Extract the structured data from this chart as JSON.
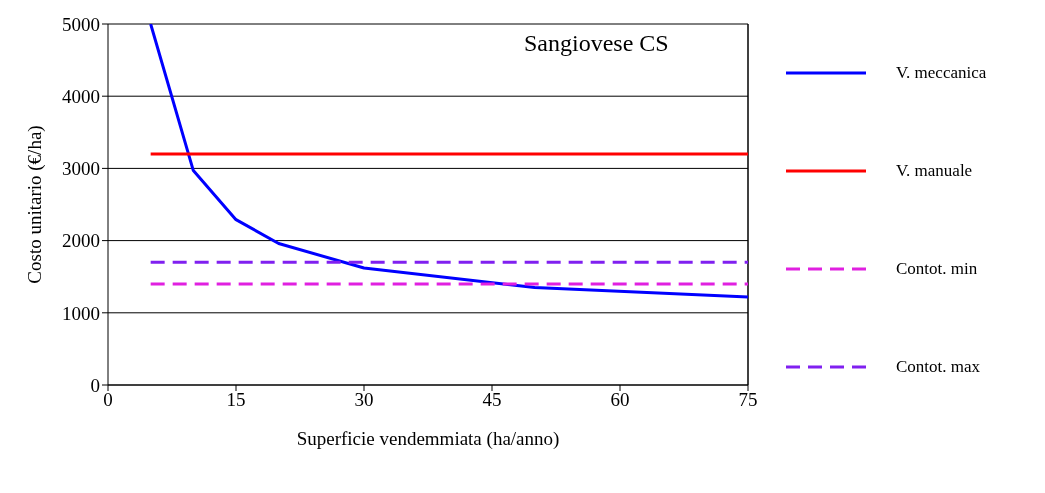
{
  "chart_data": {
    "type": "line",
    "title": "Sangiovese CS",
    "xlabel": "Superficie vendemmiata (ha/anno)",
    "ylabel": "Costo unitario (€/ha)",
    "series": [
      {
        "name": "V. meccanica",
        "color": "#0000ff",
        "x": [
          5,
          10,
          15,
          20,
          30,
          50,
          75
        ],
        "values": [
          5000,
          2970,
          2290,
          1960,
          1620,
          1350,
          1220
        ]
      },
      {
        "name": "V. manuale",
        "color": "#ff0000",
        "x": [
          5,
          75
        ],
        "values": [
          3200,
          3200
        ]
      },
      {
        "name": "Contot. min",
        "color": "#e020e0",
        "x": [
          5,
          75
        ],
        "values": [
          1400,
          1400
        ],
        "line_style": "dashed"
      },
      {
        "name": "Contot. max",
        "color": "#8020f0",
        "x": [
          5,
          75
        ],
        "values": [
          1700,
          1700
        ],
        "line_style": "dashed"
      }
    ],
    "xlim": [
      0,
      75
    ],
    "xticks": [
      0,
      15,
      30,
      45,
      60,
      75
    ],
    "ylim": [
      0,
      5000
    ],
    "yticks": [
      0,
      1000,
      2000,
      3000,
      4000,
      5000
    ],
    "grid": "y",
    "legend": "right",
    "marker": "none"
  }
}
